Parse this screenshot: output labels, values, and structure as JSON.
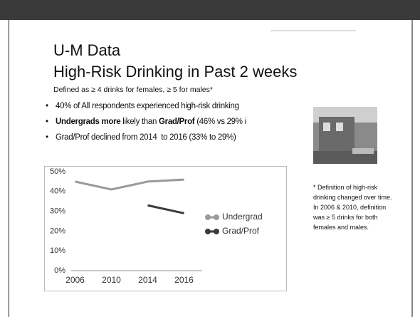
{
  "slide": {
    "title": "U-M Data",
    "subtitle": "High-Risk Drinking in Past 2 weeks",
    "definition": "Defined as ≥ 4 drinks for females, ≥ 5 for males*",
    "bullets": [
      [
        "40% of All respondents experienced high-risk drinking"
      ],
      [
        "Undergrads more",
        " likely than ",
        "Grad/Prof",
        " (46% vs 29% i"
      ],
      [
        "Grad/Prof declined from 2014  to 2016 (33% to 29%)"
      ]
    ],
    "footnote": [
      "* Definition of high-risk",
      "drinking changed over time.",
      "In 2006 & 2010, definition",
      "was ≥ 5 drinks for both",
      "females and males."
    ]
  },
  "chart_data": {
    "type": "line",
    "categories": [
      "2006",
      "2010",
      "2014",
      "2016"
    ],
    "series": [
      {
        "name": "Undergrad",
        "color": "#9a9a9a",
        "values": [
          45,
          41,
          45,
          46
        ]
      },
      {
        "name": "Grad/Prof",
        "color": "#3a3a3a",
        "values": [
          null,
          null,
          33,
          29
        ]
      }
    ],
    "ylim": [
      0,
      50
    ],
    "yticks": [
      {
        "value": 0,
        "label": "0%"
      },
      {
        "value": 10,
        "label": "10%"
      },
      {
        "value": 20,
        "label": "20%"
      },
      {
        "value": 30,
        "label": "30%"
      },
      {
        "value": 40,
        "label": "40%"
      },
      {
        "value": 50,
        "label": "50%"
      }
    ],
    "grid": false,
    "legend": "right"
  }
}
